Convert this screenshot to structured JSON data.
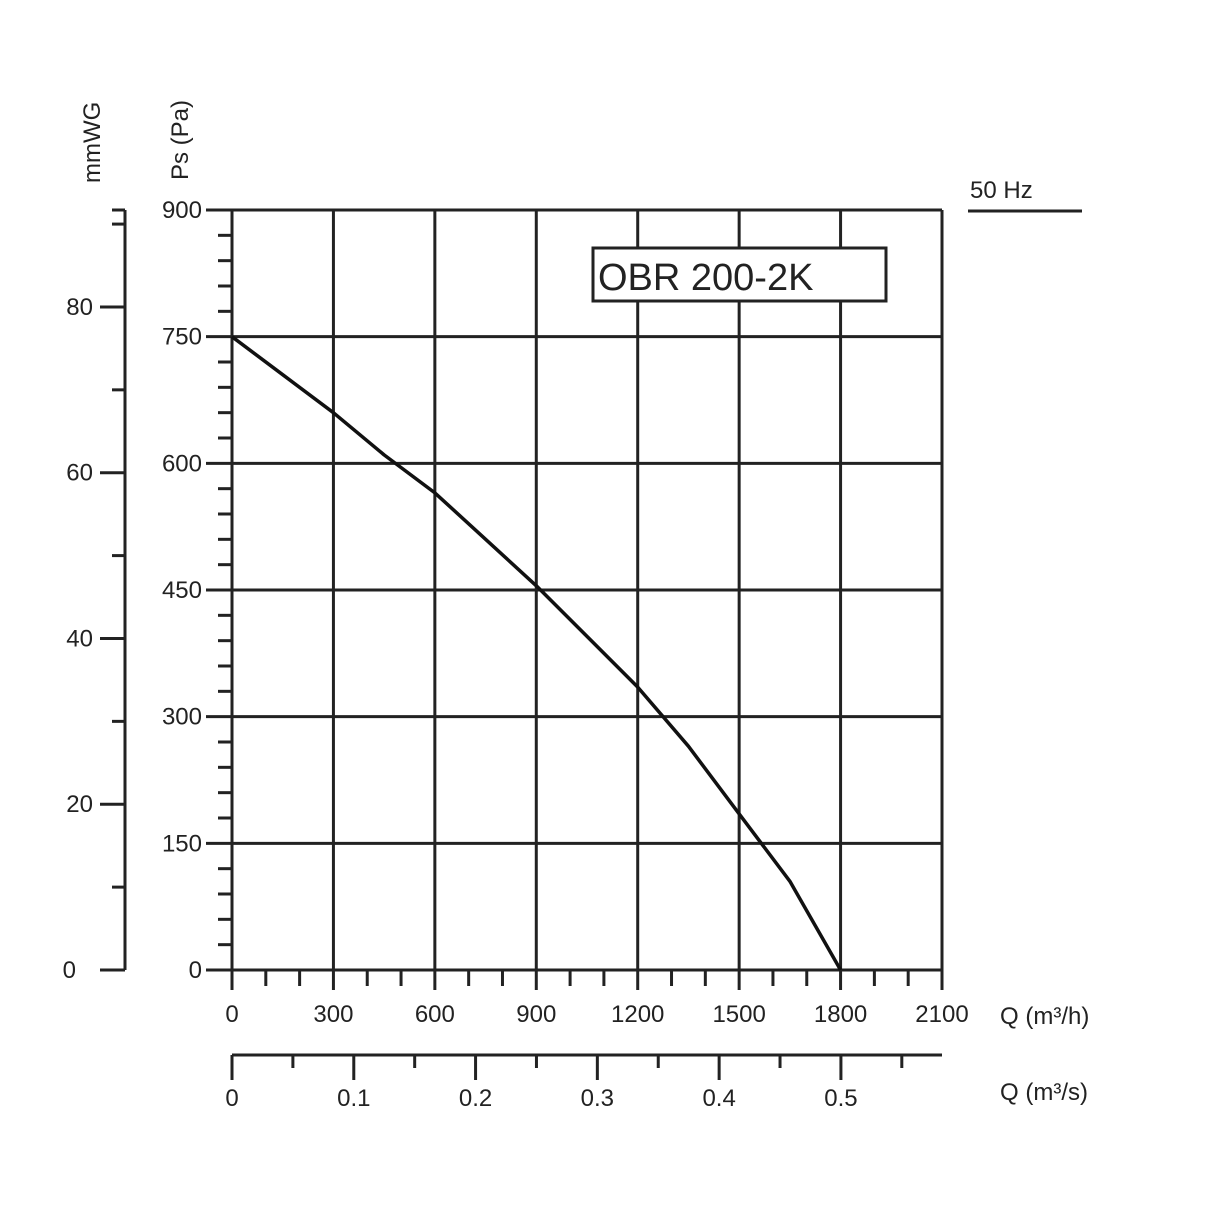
{
  "chart_data": {
    "type": "line",
    "model_label": "OBR 200-2K",
    "frequency_label": "50 Hz",
    "y_axis": {
      "label": "Ps (Pa)",
      "ticks": [
        "0",
        "150",
        "300",
        "450",
        "600",
        "750",
        "900"
      ],
      "range": [
        0,
        900
      ]
    },
    "y2_axis": {
      "label": "mmWG",
      "ticks": [
        "0",
        "20",
        "40",
        "60",
        "80"
      ],
      "range": [
        0,
        91.7
      ]
    },
    "x_axis": {
      "label": "Q (m³/h)",
      "ticks": [
        "0",
        "300",
        "600",
        "900",
        "1200",
        "1500",
        "1800",
        "2100"
      ],
      "range": [
        0,
        2100
      ]
    },
    "x2_axis": {
      "label": "Q (m³/s)",
      "ticks": [
        "0",
        "0.1",
        "0.2",
        "0.3",
        "0.4",
        "0.5"
      ],
      "range": [
        0,
        0.583
      ]
    },
    "grid": true,
    "series": [
      {
        "x": [
          0,
          150,
          300,
          450,
          600,
          750,
          900,
          1050,
          1200,
          1350,
          1500,
          1650,
          1800
        ],
        "y": [
          750,
          705,
          660,
          610,
          565,
          510,
          455,
          395,
          335,
          265,
          185,
          105,
          0
        ]
      }
    ]
  }
}
